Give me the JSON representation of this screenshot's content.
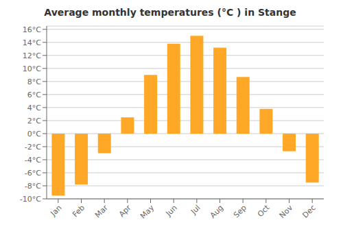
{
  "chart_data": {
    "type": "bar",
    "title": "Average monthly temperatures (°C ) in Stange",
    "categories": [
      "Jan",
      "Feb",
      "Mar",
      "Apr",
      "May",
      "Jun",
      "Jul",
      "Aug",
      "Sep",
      "Oct",
      "Nov",
      "Dec"
    ],
    "values": [
      -9.5,
      -7.8,
      -3.0,
      2.5,
      9.0,
      13.8,
      15.0,
      13.2,
      8.7,
      3.8,
      -2.7,
      -7.5
    ],
    "color": "#FFA726",
    "ylim": [
      -10,
      16.5
    ],
    "yticks": [
      {
        "value": -10,
        "label": "-10°C"
      },
      {
        "value": -8,
        "label": "-8°C"
      },
      {
        "value": -6,
        "label": "-6°C"
      },
      {
        "value": -4,
        "label": "-4°C"
      },
      {
        "value": -2,
        "label": "-2°C"
      },
      {
        "value": 0,
        "label": "0°C"
      },
      {
        "value": 2,
        "label": "2°C"
      },
      {
        "value": 4,
        "label": "4°C"
      },
      {
        "value": 6,
        "label": "6°C"
      },
      {
        "value": 8,
        "label": "8°C"
      },
      {
        "value": 10,
        "label": "10°C"
      },
      {
        "value": 12,
        "label": "12°C"
      },
      {
        "value": 14,
        "label": "14°C"
      },
      {
        "value": 16,
        "label": "16°C"
      }
    ],
    "grid": true
  }
}
